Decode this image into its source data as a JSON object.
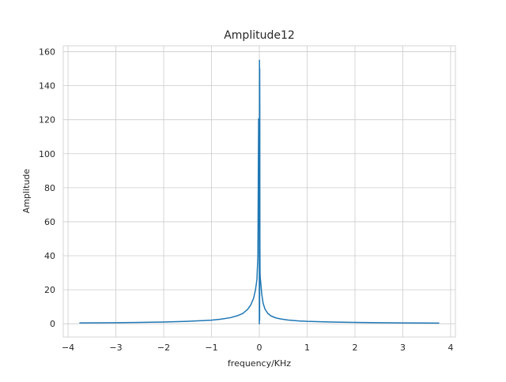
{
  "chart_data": {
    "type": "line",
    "title": "Amplitude12",
    "xlabel": "frequency/KHz",
    "ylabel": "Amplitude",
    "xlim": [
      -4.1,
      4.1
    ],
    "ylim": [
      -7.8,
      163.5
    ],
    "xticks": [
      -4,
      -3,
      -2,
      -1,
      0,
      1,
      2,
      3,
      4
    ],
    "xtick_labels": [
      "−4",
      "−3",
      "−2",
      "−1",
      "0",
      "1",
      "2",
      "3",
      "4"
    ],
    "yticks": [
      0,
      20,
      40,
      60,
      80,
      100,
      120,
      140,
      160
    ],
    "ytick_labels": [
      "0",
      "20",
      "40",
      "60",
      "80",
      "100",
      "120",
      "140",
      "160"
    ],
    "grid": true,
    "colors": {
      "series": "#1f77b4"
    },
    "series": [
      {
        "x": [
          -3.75,
          -3.0,
          -2.5,
          -2.0,
          -1.5,
          -1.0,
          -0.8,
          -0.6,
          -0.45,
          -0.35,
          -0.25,
          -0.18,
          -0.12,
          -0.08,
          -0.05,
          -0.03,
          -0.015,
          -0.004,
          0.0,
          0.003,
          0.006,
          0.008,
          0.01,
          0.012,
          0.015,
          0.02,
          0.03,
          0.05,
          0.08,
          0.12,
          0.18,
          0.25,
          0.35,
          0.45,
          0.6,
          0.8,
          1.0,
          1.5,
          2.0,
          2.5,
          3.0,
          3.75
        ],
        "y": [
          0.5,
          0.6,
          0.8,
          1.0,
          1.4,
          2.1,
          2.7,
          3.6,
          4.8,
          6.0,
          8.3,
          11.0,
          15.0,
          20.0,
          26.0,
          40.0,
          120.5,
          119.0,
          0.0,
          155.0,
          2.0,
          150.0,
          125.0,
          50.0,
          30.0,
          27.0,
          24.0,
          17.5,
          12.0,
          8.5,
          6.0,
          4.5,
          3.4,
          2.8,
          2.2,
          1.7,
          1.4,
          1.0,
          0.8,
          0.6,
          0.5,
          0.4
        ]
      }
    ]
  }
}
